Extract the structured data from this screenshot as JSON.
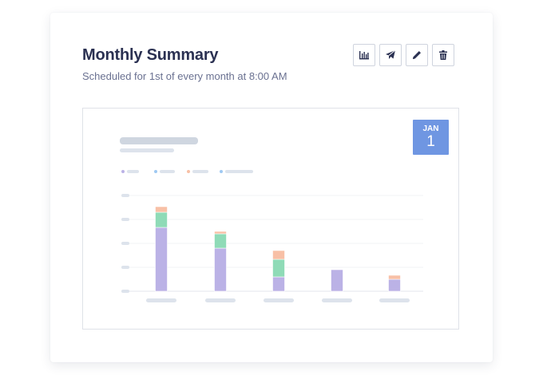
{
  "report": {
    "title": "Monthly Summary",
    "subtitle": "Scheduled for 1st of every month at 8:00 AM"
  },
  "toolbar": {
    "buttons": [
      {
        "icon": "bar-chart-icon"
      },
      {
        "icon": "send-icon"
      },
      {
        "icon": "pencil-icon"
      },
      {
        "icon": "trash-icon"
      }
    ]
  },
  "date_badge": {
    "month": "JAN",
    "day": "1"
  },
  "colors": {
    "purple": "#bbb2e6",
    "green": "#8fdbb7",
    "orange": "#f8c0a6",
    "blue": "#9fc9f2",
    "badge": "#6f96e2",
    "placeholder": "#dde3ec",
    "title_placeholder": "#cfd6e0"
  },
  "chart_data": {
    "type": "bar",
    "stacked": true,
    "categories": [
      "",
      "",
      "",
      "",
      ""
    ],
    "series": [
      {
        "color": "#bbb2e6",
        "values": [
          80,
          54,
          18,
          27,
          15
        ]
      },
      {
        "color": "#8fdbb7",
        "values": [
          19,
          18,
          22,
          0,
          0
        ]
      },
      {
        "color": "#f8c0a6",
        "values": [
          7,
          3,
          11,
          0,
          5
        ]
      }
    ],
    "ylim": [
      0,
      120
    ],
    "grid": true
  }
}
